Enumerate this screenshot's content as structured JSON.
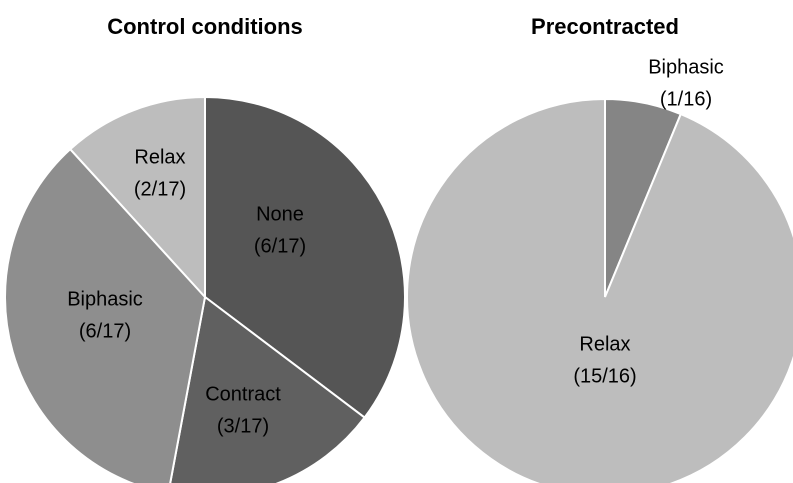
{
  "chart_data": [
    {
      "type": "pie",
      "title": "Control conditions",
      "categories": [
        "None",
        "Contract",
        "Biphasic",
        "Relax"
      ],
      "values": [
        6,
        3,
        6,
        2
      ],
      "value_labels": [
        "(6/17)",
        "(3/17)",
        "(6/17)",
        "(2/17)"
      ],
      "colors": [
        "#555555",
        "#606060",
        "#8e8e8e",
        "#bdbdbd"
      ]
    },
    {
      "type": "pie",
      "title": "Precontracted",
      "categories": [
        "Biphasic",
        "Relax"
      ],
      "values": [
        1,
        15
      ],
      "value_labels": [
        "(1/16)",
        "(15/16)"
      ],
      "colors": [
        "#858585",
        "#bdbdbd"
      ]
    }
  ]
}
